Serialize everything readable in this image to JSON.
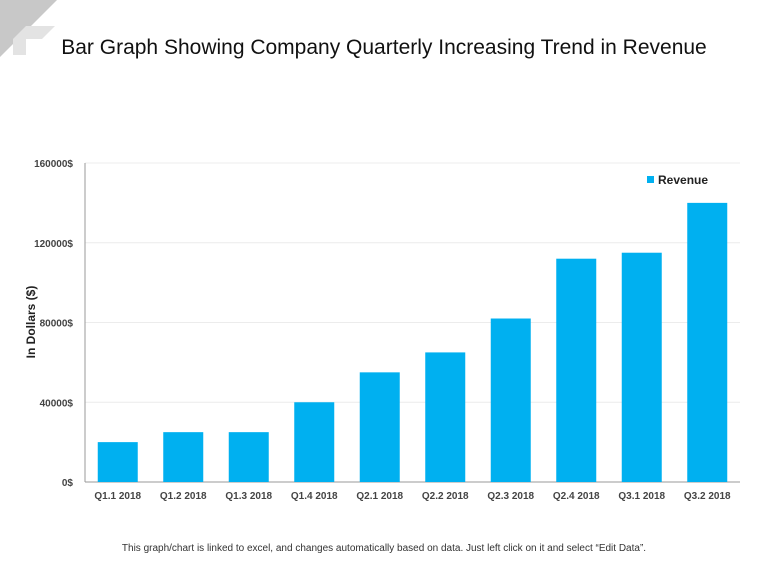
{
  "slide": {
    "title": "Bar Graph Showing Company Quarterly Increasing Trend in Revenue",
    "footer": "This graph/chart is linked to excel, and changes automatically based on data. Just left click on it and select “Edit Data”."
  },
  "chart_data": {
    "type": "bar",
    "title": "",
    "xlabel": "",
    "ylabel": "In Dollars ($)",
    "ylim": [
      0,
      160000
    ],
    "yticks": [
      0,
      40000,
      80000,
      120000,
      160000
    ],
    "ytick_labels": [
      "0$",
      "40000$",
      "80000$",
      "120000$",
      "160000$"
    ],
    "grid": true,
    "legend": "top-right",
    "categories": [
      "Q1.1 2018",
      "Q1.2 2018",
      "Q1.3 2018",
      "Q1.4 2018",
      "Q2.1 2018",
      "Q2.2 2018",
      "Q2.3 2018",
      "Q2.4 2018",
      "Q3.1 2018",
      "Q3.2 2018"
    ],
    "series": [
      {
        "name": "Revenue",
        "color": "#00b0f0",
        "values": [
          20000,
          25000,
          25000,
          40000,
          55000,
          65000,
          82000,
          112000,
          115000,
          140000
        ]
      }
    ]
  }
}
